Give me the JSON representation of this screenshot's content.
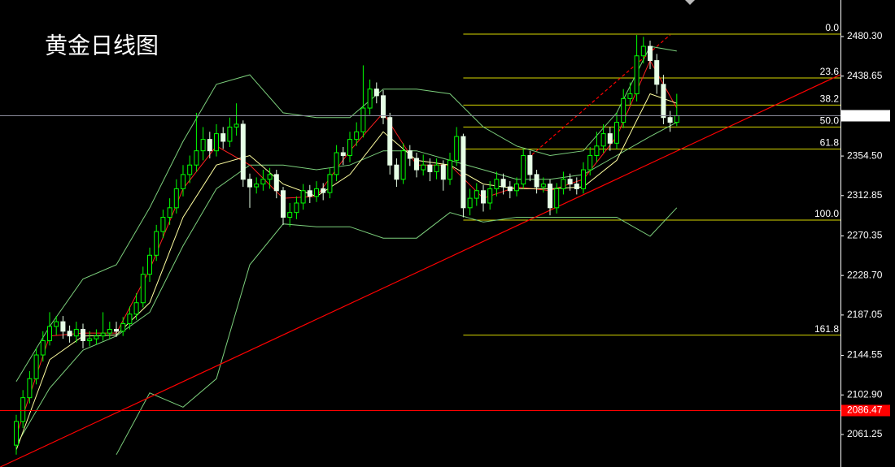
{
  "chart_data": {
    "type": "candlestick",
    "title": "黄金日线图",
    "ylim": [
      2027.0,
      2518.8
    ],
    "yticks": [
      {
        "value": 2480.3,
        "label": "2480.30"
      },
      2438.65,
      {
        "value": 2354.5,
        "label": "2354.50"
      },
      2312.85,
      2270.35,
      {
        "value": 2228.7,
        "label": "2228.70"
      },
      2187.05,
      2144.55,
      {
        "value": 2102.9,
        "label": "2102.90"
      },
      2061.25
    ],
    "up_color": "#00ff00",
    "down_color": "#e6ffe6",
    "candles": [
      [
        2050,
        2082,
        2040,
        2075
      ],
      [
        2075,
        2108,
        2068,
        2100
      ],
      [
        2100,
        2128,
        2094,
        2120
      ],
      [
        2120,
        2152,
        2114,
        2145
      ],
      [
        2145,
        2170,
        2138,
        2160
      ],
      [
        2160,
        2190,
        2155,
        2175
      ],
      [
        2175,
        2186,
        2166,
        2180
      ],
      [
        2180,
        2186,
        2162,
        2170
      ],
      [
        2170,
        2176,
        2158,
        2165
      ],
      [
        2165,
        2180,
        2158,
        2172
      ],
      [
        2172,
        2178,
        2152,
        2160
      ],
      [
        2160,
        2170,
        2154,
        2162
      ],
      [
        2162,
        2172,
        2156,
        2165
      ],
      [
        2165,
        2190,
        2160,
        2168
      ],
      [
        2168,
        2180,
        2162,
        2172
      ],
      [
        2172,
        2180,
        2164,
        2170
      ],
      [
        2170,
        2185,
        2165,
        2178
      ],
      [
        2178,
        2196,
        2172,
        2188
      ],
      [
        2188,
        2210,
        2182,
        2200
      ],
      [
        2200,
        2238,
        2195,
        2230
      ],
      [
        2230,
        2258,
        2222,
        2250
      ],
      [
        2250,
        2282,
        2244,
        2275
      ],
      [
        2275,
        2298,
        2268,
        2290
      ],
      [
        2290,
        2310,
        2282,
        2300
      ],
      [
        2300,
        2330,
        2294,
        2320
      ],
      [
        2320,
        2345,
        2312,
        2335
      ],
      [
        2335,
        2355,
        2326,
        2345
      ],
      [
        2345,
        2400,
        2338,
        2360
      ],
      [
        2360,
        2385,
        2350,
        2372
      ],
      [
        2372,
        2380,
        2352,
        2360
      ],
      [
        2360,
        2388,
        2354,
        2378
      ],
      [
        2378,
        2385,
        2362,
        2370
      ],
      [
        2370,
        2395,
        2364,
        2385
      ],
      [
        2385,
        2410,
        2376,
        2388
      ],
      [
        2388,
        2392,
        2322,
        2330
      ],
      [
        2330,
        2336,
        2300,
        2322
      ],
      [
        2322,
        2332,
        2315,
        2325
      ],
      [
        2325,
        2340,
        2318,
        2330
      ],
      [
        2330,
        2342,
        2320,
        2335
      ],
      [
        2335,
        2340,
        2310,
        2318
      ],
      [
        2318,
        2322,
        2282,
        2290
      ],
      [
        2290,
        2305,
        2280,
        2295
      ],
      [
        2295,
        2312,
        2288,
        2305
      ],
      [
        2305,
        2325,
        2298,
        2318
      ],
      [
        2318,
        2324,
        2305,
        2312
      ],
      [
        2312,
        2328,
        2306,
        2320
      ],
      [
        2320,
        2326,
        2308,
        2316
      ],
      [
        2316,
        2342,
        2310,
        2335
      ],
      [
        2335,
        2366,
        2328,
        2358
      ],
      [
        2358,
        2364,
        2345,
        2355
      ],
      [
        2355,
        2380,
        2348,
        2372
      ],
      [
        2372,
        2390,
        2365,
        2380
      ],
      [
        2380,
        2450,
        2374,
        2405
      ],
      [
        2405,
        2435,
        2398,
        2425
      ],
      [
        2425,
        2432,
        2410,
        2418
      ],
      [
        2418,
        2424,
        2388,
        2395
      ],
      [
        2395,
        2400,
        2335,
        2345
      ],
      [
        2345,
        2352,
        2322,
        2330
      ],
      [
        2330,
        2368,
        2325,
        2360
      ],
      [
        2360,
        2366,
        2344,
        2352
      ],
      [
        2352,
        2358,
        2332,
        2340
      ],
      [
        2340,
        2356,
        2334,
        2345
      ],
      [
        2345,
        2352,
        2328,
        2338
      ],
      [
        2338,
        2352,
        2330,
        2345
      ],
      [
        2345,
        2350,
        2318,
        2330
      ],
      [
        2330,
        2358,
        2324,
        2350
      ],
      [
        2350,
        2385,
        2344,
        2375
      ],
      [
        2375,
        2378,
        2290,
        2300
      ],
      [
        2300,
        2320,
        2292,
        2310
      ],
      [
        2310,
        2326,
        2302,
        2318
      ],
      [
        2318,
        2324,
        2296,
        2305
      ],
      [
        2305,
        2328,
        2298,
        2320
      ],
      [
        2320,
        2338,
        2312,
        2330
      ],
      [
        2330,
        2336,
        2314,
        2322
      ],
      [
        2322,
        2328,
        2310,
        2318
      ],
      [
        2318,
        2332,
        2312,
        2325
      ],
      [
        2325,
        2362,
        2320,
        2355
      ],
      [
        2355,
        2360,
        2328,
        2335
      ],
      [
        2335,
        2340,
        2315,
        2322
      ],
      [
        2322,
        2332,
        2316,
        2325
      ],
      [
        2325,
        2330,
        2292,
        2300
      ],
      [
        2300,
        2326,
        2294,
        2320
      ],
      [
        2320,
        2338,
        2314,
        2330
      ],
      [
        2330,
        2336,
        2318,
        2325
      ],
      [
        2325,
        2332,
        2314,
        2320
      ],
      [
        2320,
        2348,
        2315,
        2340
      ],
      [
        2340,
        2364,
        2334,
        2355
      ],
      [
        2355,
        2380,
        2348,
        2365
      ],
      [
        2365,
        2388,
        2358,
        2378
      ],
      [
        2378,
        2385,
        2360,
        2368
      ],
      [
        2368,
        2400,
        2362,
        2390
      ],
      [
        2390,
        2425,
        2384,
        2415
      ],
      [
        2415,
        2432,
        2408,
        2420
      ],
      [
        2420,
        2482,
        2412,
        2460
      ],
      [
        2460,
        2480,
        2452,
        2470
      ],
      [
        2470,
        2476,
        2446,
        2455
      ],
      [
        2455,
        2462,
        2420,
        2430
      ],
      [
        2430,
        2440,
        2388,
        2395
      ],
      [
        2395,
        2402,
        2380,
        2390
      ],
      [
        2390,
        2420,
        2386,
        2396.91
      ]
    ],
    "indicators": [
      {
        "color": "#7ccf7c",
        "x": [
          0,
          5,
          10,
          15,
          20,
          25,
          30,
          35,
          40,
          45,
          50,
          55,
          60,
          65,
          70,
          75,
          80,
          85,
          90,
          95,
          99
        ],
        "values": [
          2117,
          2175,
          2225,
          2240,
          2300,
          2370,
          2430,
          2440,
          2400,
          2395,
          2395,
          2425,
          2425,
          2420,
          2385,
          2365,
          2355,
          2360,
          2400,
          2470,
          2465
        ]
      },
      {
        "color": "#7ccf7c",
        "x": [
          0,
          5,
          10,
          15,
          20,
          25,
          30,
          35,
          40,
          45,
          50,
          55,
          60,
          65,
          70,
          75,
          80,
          85,
          90,
          95,
          99
        ],
        "values": [
          2050,
          2110,
          2150,
          2165,
          2190,
          2260,
          2320,
          2345,
          2345,
          2340,
          2345,
          2360,
          2360,
          2350,
          2340,
          2330,
          2330,
          2335,
          2355,
          2375,
          2390
        ]
      },
      {
        "color": "#7ccf7c",
        "x": [
          15,
          20,
          25,
          30,
          35,
          40,
          45,
          50,
          55,
          60,
          65,
          70,
          75,
          80,
          85,
          90,
          95,
          99
        ],
        "values": [
          2040,
          2105,
          2090,
          2120,
          2240,
          2283,
          2280,
          2280,
          2268,
          2268,
          2295,
          2285,
          2290,
          2290,
          2290,
          2290,
          2270,
          2300
        ]
      },
      {
        "color": "#ff2020",
        "x": [
          0,
          5,
          10,
          15,
          20,
          25,
          30,
          35,
          40,
          45,
          50,
          55,
          60,
          65,
          70,
          75,
          80,
          85,
          90,
          95,
          99
        ],
        "values": [
          2060,
          2165,
          2168,
          2168,
          2235,
          2320,
          2365,
          2345,
          2310,
          2312,
          2360,
          2400,
          2345,
          2345,
          2310,
          2322,
          2318,
          2330,
          2375,
          2455,
          2405
        ]
      },
      {
        "color": "#ffffa0",
        "x": [
          0,
          5,
          10,
          15,
          20,
          25,
          30,
          35,
          40,
          45,
          50,
          55,
          60,
          65,
          70,
          75,
          80,
          85,
          90,
          95,
          99
        ],
        "values": [
          2045,
          2140,
          2165,
          2166,
          2200,
          2290,
          2345,
          2355,
          2325,
          2312,
          2335,
          2380,
          2350,
          2345,
          2325,
          2320,
          2320,
          2322,
          2350,
          2420,
          2410
        ]
      }
    ],
    "trendlines": [
      {
        "color": "#ff0000",
        "dash": false,
        "x": [
          -2.4,
          123.5
        ],
        "values": [
          2027.0,
          2440.1
        ]
      },
      {
        "color": "#ff0000",
        "dash": true,
        "x": [
          76,
          98
        ],
        "values": [
          2348,
          2482
        ]
      }
    ],
    "fibonacci": {
      "color": "#d8d800",
      "x_start": 67,
      "levels": [
        {
          "label": "0.0",
          "price": 2482.9
        },
        {
          "label": "23.6",
          "price": 2436.7
        },
        {
          "label": "38.2",
          "price": 2408.1
        },
        {
          "label": "50.0",
          "price": 2385.0
        },
        {
          "label": "61.8",
          "price": 2361.8
        },
        {
          "label": "100.0",
          "price": 2287.0
        },
        {
          "label": "161.8",
          "price": 2165.9
        }
      ]
    },
    "price_lines": [
      {
        "value": 2396.91,
        "color": "#8a8a9a"
      },
      {
        "value": 2086.47,
        "color": "#ff0000"
      }
    ]
  }
}
